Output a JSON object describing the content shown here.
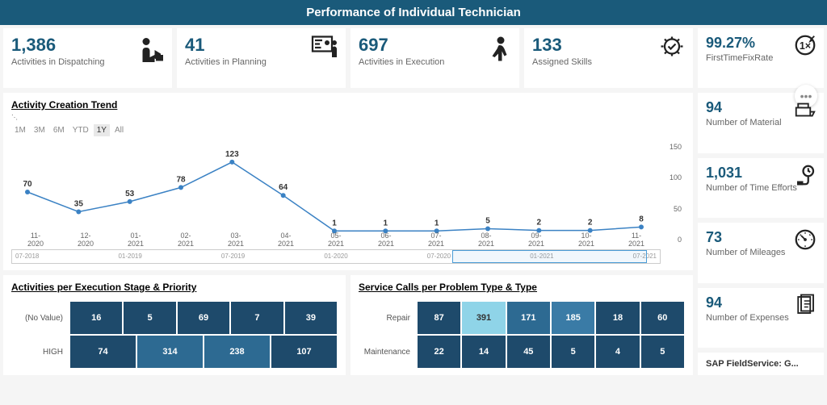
{
  "header": {
    "title": "Performance of Individual Technician"
  },
  "kpi_top": [
    {
      "value": "1,386",
      "label": "Activities in Dispatching",
      "icon": "dispatch"
    },
    {
      "value": "41",
      "label": "Activities in Planning",
      "icon": "planning"
    },
    {
      "value": "697",
      "label": "Activities in Execution",
      "icon": "execution"
    },
    {
      "value": "133",
      "label": "Assigned Skills",
      "icon": "skills"
    }
  ],
  "kpi_side": [
    {
      "value": "99.27%",
      "label": "FirstTimeFixRate",
      "icon": "fix"
    },
    {
      "value": "94",
      "label": "Number of Material",
      "icon": "material"
    },
    {
      "value": "1,031",
      "label": "Number of Time Efforts",
      "icon": "time"
    },
    {
      "value": "73",
      "label": "Number of Mileages",
      "icon": "mileage"
    },
    {
      "value": "94",
      "label": "Number of Expenses",
      "icon": "expense"
    }
  ],
  "sap_card": {
    "text": "SAP FieldService: G..."
  },
  "trend": {
    "title": "Activity Creation Trend",
    "ranges": [
      "1M",
      "3M",
      "6M",
      "YTD",
      "1Y",
      "All"
    ],
    "active_range": "1Y",
    "ylim": [
      0,
      150
    ],
    "ytick_step": 50,
    "line_color": "#3b82c4",
    "point_color": "#3b82c4",
    "xlabels": [
      "11-2020",
      "12-2020",
      "01-2021",
      "02-2021",
      "03-2021",
      "04-2021",
      "05-2021",
      "06-2021",
      "07-2021",
      "08-2021",
      "09-2021",
      "10-2021",
      "11-2021"
    ],
    "values": [
      70,
      35,
      53,
      78,
      123,
      64,
      1,
      1,
      1,
      5,
      2,
      2,
      8
    ],
    "scrubber_labels": [
      "07-2018",
      "01-2019",
      "07-2019",
      "01-2020",
      "07-2020",
      "01-2021",
      "07-2021"
    ],
    "scrubber_sel": {
      "left_pct": 68,
      "width_pct": 30
    }
  },
  "exec_heat": {
    "title": "Activities per Execution Stage & Priority",
    "row_labels": [
      "(No Value)",
      "HIGH"
    ],
    "rows": [
      [
        {
          "v": 16,
          "c": "#1e4a6b"
        },
        {
          "v": 5,
          "c": "#1e4a6b"
        },
        {
          "v": 69,
          "c": "#1e4a6b"
        },
        {
          "v": 7,
          "c": "#1e4a6b"
        },
        {
          "v": 39,
          "c": "#1e4a6b"
        }
      ],
      [
        {
          "v": 74,
          "c": "#1e4a6b"
        },
        {
          "v": 314,
          "c": "#2d6a92"
        },
        {
          "v": 238,
          "c": "#2d6a92"
        },
        {
          "v": 107,
          "c": "#1e4a6b"
        }
      ]
    ]
  },
  "svc_heat": {
    "title": "Service Calls per Problem Type & Type",
    "row_labels": [
      "Repair",
      "Maintenance"
    ],
    "rows": [
      [
        {
          "v": 87,
          "c": "#1e4a6b"
        },
        {
          "v": 391,
          "c": "#8fd4e8"
        },
        {
          "v": 171,
          "c": "#2d6a92"
        },
        {
          "v": 185,
          "c": "#3a7ba6"
        },
        {
          "v": 18,
          "c": "#1e4a6b"
        },
        {
          "v": 60,
          "c": "#1e4a6b"
        }
      ],
      [
        {
          "v": 22,
          "c": "#1e4a6b"
        },
        {
          "v": 14,
          "c": "#1e4a6b"
        },
        {
          "v": 45,
          "c": "#1e4a6b"
        },
        {
          "v": 5,
          "c": "#1e4a6b"
        },
        {
          "v": 4,
          "c": "#1e4a6b"
        },
        {
          "v": 5,
          "c": "#1e4a6b"
        }
      ]
    ]
  }
}
